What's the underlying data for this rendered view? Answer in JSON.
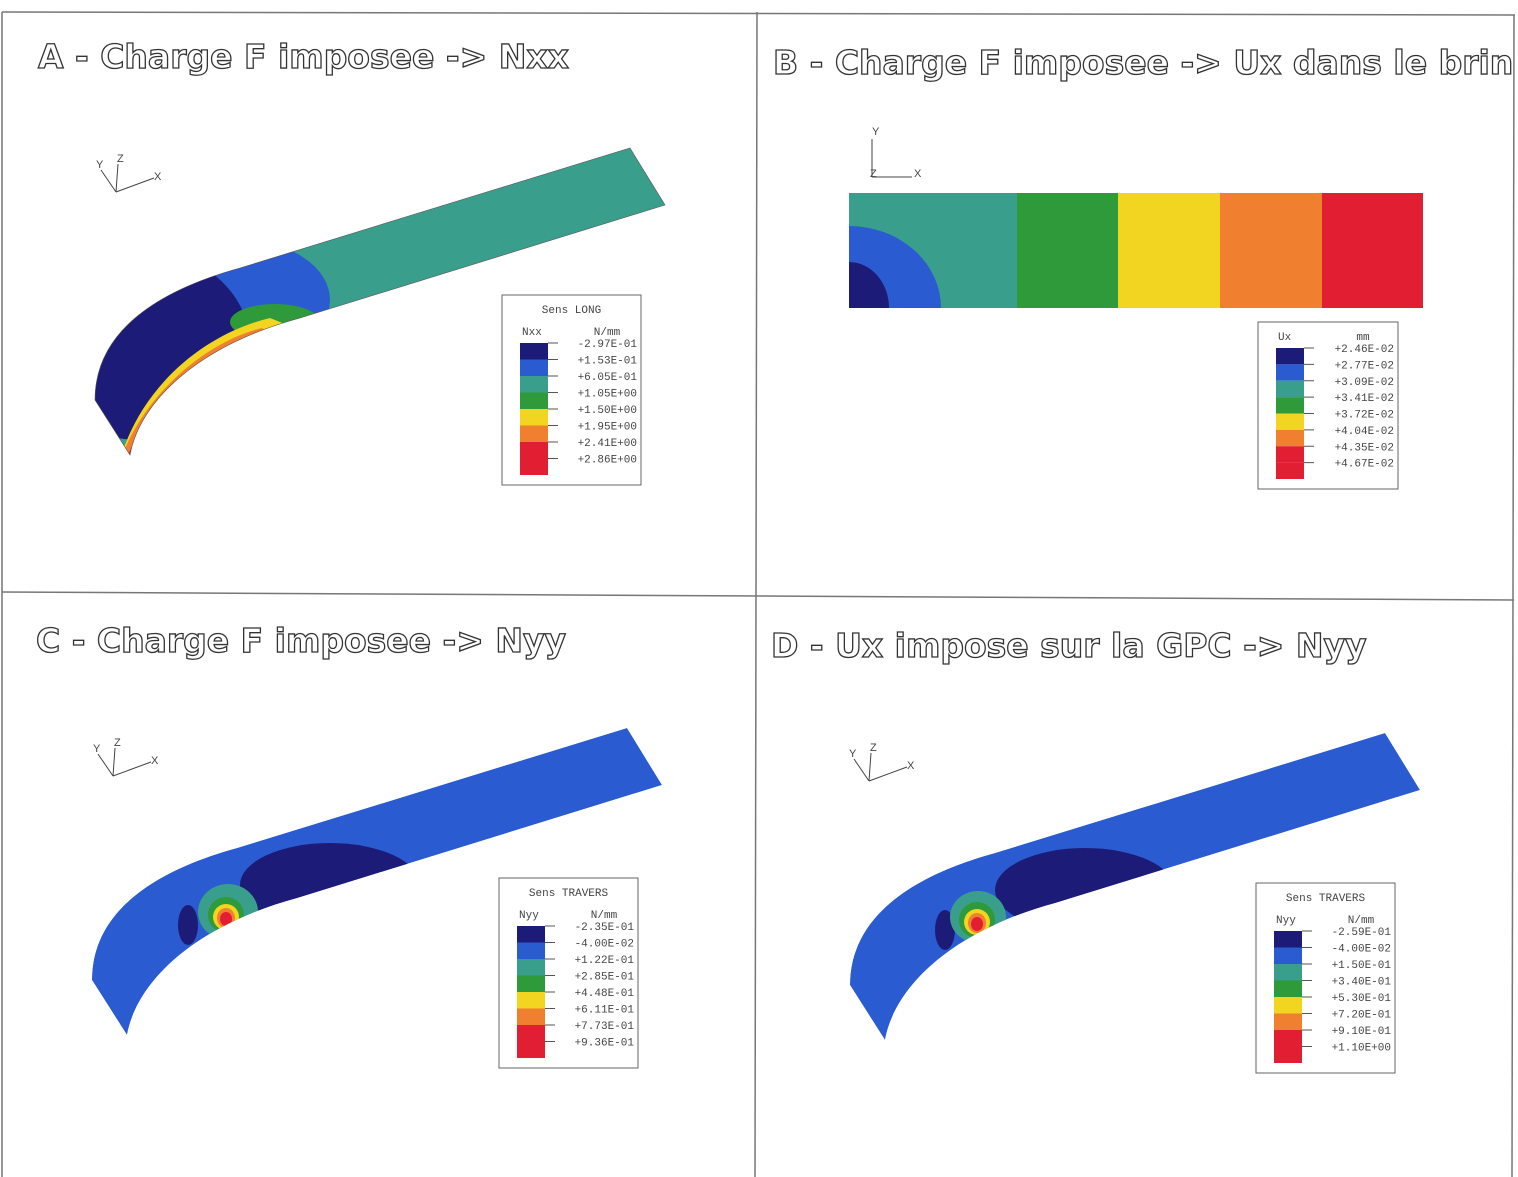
{
  "panels": [
    {
      "title": "A - Charge F imposee ->  Nxx",
      "axes": [
        "Y",
        "Z",
        "X"
      ],
      "legend": {
        "caption": "Sens LONG",
        "quantity": "Nxx",
        "unit": "N/mm",
        "labels": [
          "-2.97E-01",
          "+1.53E-01",
          "+6.05E-01",
          "+1.05E+00",
          "+1.50E+00",
          "+1.95E+00",
          "+2.41E+00",
          "+2.86E+00"
        ]
      }
    },
    {
      "title": "B - Charge F imposee -> Ux dans le brin",
      "axes": [
        "Y",
        "Z",
        "X"
      ],
      "legend": {
        "quantity": "Ux",
        "unit": "mm",
        "labels": [
          "+2.46E-02",
          "+2.77E-02",
          "+3.09E-02",
          "+3.41E-02",
          "+3.72E-02",
          "+4.04E-02",
          "+4.35E-02",
          "+4.67E-02"
        ]
      }
    },
    {
      "title": "C - Charge F imposee ->  Nyy",
      "axes": [
        "Y",
        "Z",
        "X"
      ],
      "legend": {
        "caption": "Sens TRAVERS",
        "quantity": "Nyy",
        "unit": "N/mm",
        "labels": [
          "-2.35E-01",
          "-4.00E-02",
          "+1.22E-01",
          "+2.85E-01",
          "+4.48E-01",
          "+6.11E-01",
          "+7.73E-01",
          "+9.36E-01"
        ]
      }
    },
    {
      "title": "D - Ux impose sur la GPC ->  Nyy",
      "axes": [
        "Y",
        "Z",
        "X"
      ],
      "legend": {
        "caption": "Sens TRAVERS",
        "quantity": "Nyy",
        "unit": "N/mm",
        "labels": [
          "-2.59E-01",
          "-4.00E-02",
          "+1.50E-01",
          "+3.40E-01",
          "+5.30E-01",
          "+7.20E-01",
          "+9.10E-01",
          "+1.10E+00"
        ]
      }
    }
  ]
}
